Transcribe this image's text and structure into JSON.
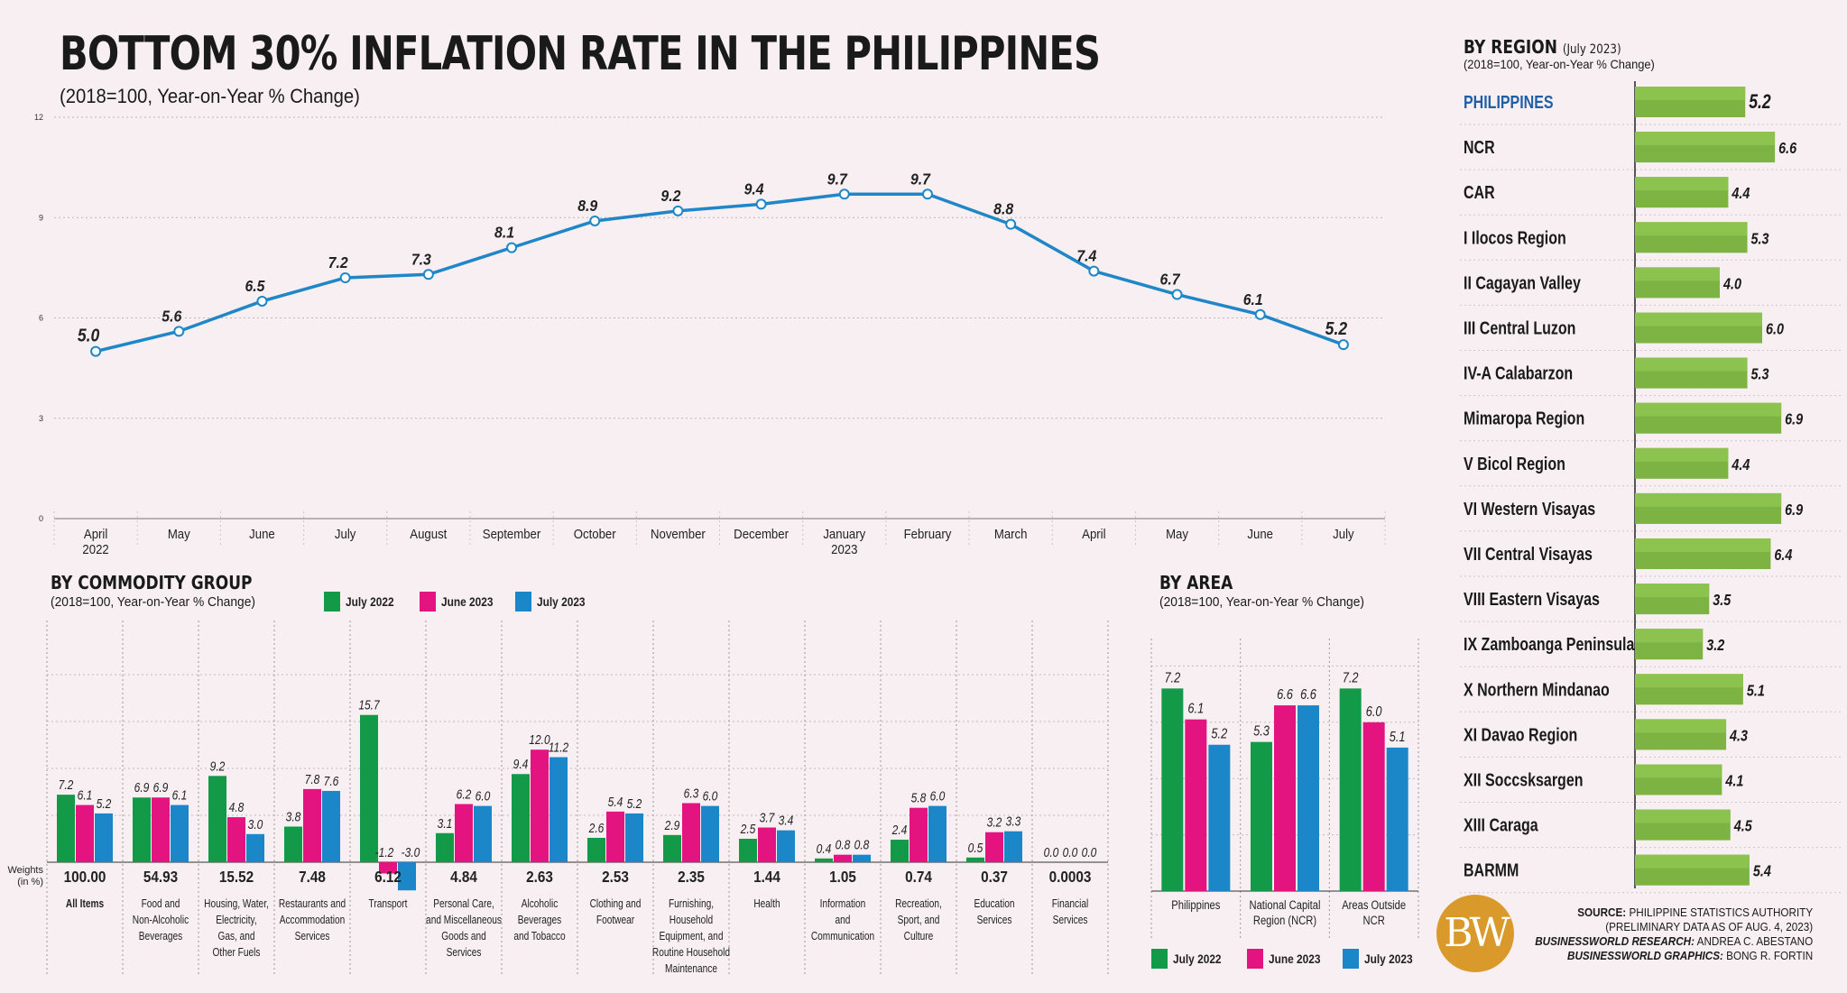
{
  "title": "BOTTOM 30% INFLATION RATE IN THE PHILIPPINES",
  "subtitle": "(2018=100, Year-on-Year % Change)",
  "colors": {
    "line": "#1f86c8",
    "green": "#139a48",
    "magenta": "#e3137f",
    "blue": "#1b87c9",
    "region_bar": "#7cb342",
    "region_bar_light": "#8cc34f",
    "highlight": "#1f5fa8"
  },
  "line_chart": {
    "type": "line",
    "title": "",
    "yticks": [
      0,
      3,
      6,
      9,
      12
    ],
    "ylim": [
      0,
      12
    ],
    "categories": [
      [
        "April",
        "2022"
      ],
      [
        "May"
      ],
      [
        "June"
      ],
      [
        "July"
      ],
      [
        "August"
      ],
      [
        "September"
      ],
      [
        "October"
      ],
      [
        "November"
      ],
      [
        "December"
      ],
      [
        "January",
        "2023"
      ],
      [
        "February"
      ],
      [
        "March"
      ],
      [
        "April"
      ],
      [
        "May"
      ],
      [
        "June"
      ],
      [
        "July"
      ]
    ],
    "labels": [
      "5.0",
      "5.6",
      "6.5",
      "7.2",
      "7.3",
      "8.1",
      "8.9",
      "9.2",
      "9.4",
      "9.7",
      "9.7",
      "8.8",
      "7.4",
      "6.7",
      "6.1",
      "5.2"
    ],
    "values": [
      5.0,
      5.6,
      6.5,
      7.2,
      7.3,
      8.1,
      8.9,
      9.2,
      9.4,
      9.7,
      9.7,
      8.8,
      7.4,
      6.7,
      6.1,
      5.2
    ]
  },
  "chart_data": [
    {
      "type": "line",
      "categories": [
        "April 2022",
        "May",
        "June",
        "July",
        "August",
        "September",
        "October",
        "November",
        "December",
        "January 2023",
        "February",
        "March",
        "April",
        "May",
        "June",
        "July"
      ],
      "values": [
        5.0,
        5.6,
        6.5,
        7.2,
        7.3,
        8.1,
        8.9,
        9.2,
        9.4,
        9.7,
        9.7,
        8.8,
        7.4,
        6.7,
        6.1,
        5.2
      ],
      "ylim": [
        0,
        12
      ],
      "title": "BOTTOM 30% INFLATION RATE IN THE PHILIPPINES",
      "subtitle": "(2018=100, Year-on-Year % Change)"
    },
    {
      "type": "bar",
      "title": "BY COMMODITY GROUP",
      "subtitle": "(2018=100, Year-on-Year % Change)",
      "categories": [
        "All Items",
        "Food and Non-Alcoholic Beverages",
        "Housing, Water, Electricity, Gas, and Other Fuels",
        "Restaurants and Accommodation Services",
        "Transport",
        "Personal Care, and Miscellaneous Goods and Services",
        "Alcoholic Beverages and Tobacco",
        "Clothing and Footwear",
        "Furnishing, Household Equipment, and Routine Household Maintenance",
        "Health",
        "Information and Communication",
        "Recreation, Sport, and Culture",
        "Education Services",
        "Financial Services"
      ],
      "weights": [
        "100.00",
        "54.93",
        "15.52",
        "7.48",
        "6.12",
        "4.84",
        "2.63",
        "2.53",
        "2.35",
        "1.44",
        "1.05",
        "0.74",
        "0.37",
        "0.0003"
      ],
      "series": [
        {
          "name": "July 2022",
          "values": [
            7.2,
            6.9,
            9.2,
            3.8,
            15.7,
            3.1,
            9.4,
            2.6,
            2.9,
            2.5,
            0.4,
            2.4,
            0.5,
            0.0
          ]
        },
        {
          "name": "June 2023",
          "values": [
            6.1,
            6.9,
            4.8,
            7.8,
            -1.2,
            6.2,
            12.0,
            5.4,
            6.3,
            3.7,
            0.8,
            5.8,
            3.2,
            0.0
          ]
        },
        {
          "name": "July 2023",
          "values": [
            5.2,
            6.1,
            3.0,
            7.6,
            -3.0,
            6.0,
            11.2,
            5.2,
            6.0,
            3.4,
            0.8,
            6.0,
            3.3,
            0.0
          ]
        }
      ]
    },
    {
      "type": "bar",
      "title": "BY AREA",
      "subtitle": "(2018=100, Year-on-Year % Change)",
      "categories": [
        "Philippines",
        "National Capital Region (NCR)",
        "Areas Outside NCR"
      ],
      "series": [
        {
          "name": "July 2022",
          "values": [
            7.2,
            5.3,
            7.2
          ]
        },
        {
          "name": "June 2023",
          "values": [
            6.1,
            6.6,
            6.0
          ]
        },
        {
          "name": "July 2023",
          "values": [
            5.2,
            6.6,
            5.1
          ]
        }
      ]
    },
    {
      "type": "bar",
      "title": "BY REGION",
      "subtitle": "(2018=100, Year-on-Year % Change)",
      "categories": [
        "PHILIPPINES",
        "NCR",
        "CAR",
        "I Ilocos Region",
        "II Cagayan Valley",
        "III Central Luzon",
        "IV-A Calabarzon",
        "Mimaropa Region",
        "V Bicol Region",
        "VI Western Visayas",
        "VII Central Visayas",
        "VIII Eastern Visayas",
        "IX Zamboanga Peninsula",
        "X Northern Mindanao",
        "XI Davao Region",
        "XII Soccsksargen",
        "XIII Caraga",
        "BARMM"
      ],
      "values": [
        5.2,
        6.6,
        4.4,
        5.3,
        4.0,
        6.0,
        5.3,
        6.9,
        4.4,
        6.9,
        6.4,
        3.5,
        3.2,
        5.1,
        4.3,
        4.1,
        4.5,
        5.4
      ]
    }
  ],
  "commodity": {
    "title": "BY COMMODITY GROUP",
    "subtitle": "(2018=100, Year-on-Year % Change)",
    "legend": [
      "July 2022",
      "June 2023",
      "July 2023"
    ],
    "weights_label": [
      "Weights",
      "(in %)"
    ],
    "groups": [
      {
        "name": [
          "All Items"
        ],
        "weight": "100.00",
        "labels": [
          "7.2",
          "6.1",
          "5.2"
        ],
        "values": [
          7.2,
          6.1,
          5.2
        ]
      },
      {
        "name": [
          "Food and",
          "Non-Alcoholic",
          "Beverages"
        ],
        "weight": "54.93",
        "labels": [
          "6.9",
          "6.9",
          "6.1"
        ],
        "values": [
          6.9,
          6.9,
          6.1
        ]
      },
      {
        "name": [
          "Housing, Water,",
          "Electricity,",
          "Gas, and",
          "Other Fuels"
        ],
        "weight": "15.52",
        "labels": [
          "9.2",
          "4.8",
          "3.0"
        ],
        "values": [
          9.2,
          4.8,
          3.0
        ]
      },
      {
        "name": [
          "Restaurants and",
          "Accommodation",
          "Services"
        ],
        "weight": "7.48",
        "labels": [
          "3.8",
          "7.8",
          "7.6"
        ],
        "values": [
          3.8,
          7.8,
          7.6
        ]
      },
      {
        "name": [
          "Transport"
        ],
        "weight": "6.12",
        "labels": [
          "15.7",
          "-1.2",
          "-3.0"
        ],
        "values": [
          15.7,
          -1.2,
          -3.0
        ]
      },
      {
        "name": [
          "Personal Care,",
          "and Miscellaneous",
          "Goods and",
          "Services"
        ],
        "weight": "4.84",
        "labels": [
          "3.1",
          "6.2",
          "6.0"
        ],
        "values": [
          3.1,
          6.2,
          6.0
        ]
      },
      {
        "name": [
          "Alcoholic",
          "Beverages",
          "and Tobacco"
        ],
        "weight": "2.63",
        "labels": [
          "9.4",
          "12.0",
          "11.2"
        ],
        "values": [
          9.4,
          12.0,
          11.2
        ]
      },
      {
        "name": [
          "Clothing and",
          "Footwear"
        ],
        "weight": "2.53",
        "labels": [
          "2.6",
          "5.4",
          "5.2"
        ],
        "values": [
          2.6,
          5.4,
          5.2
        ]
      },
      {
        "name": [
          "Furnishing,",
          "Household",
          "Equipment, and",
          "Routine Household",
          "Maintenance"
        ],
        "weight": "2.35",
        "labels": [
          "2.9",
          "6.3",
          "6.0"
        ],
        "values": [
          2.9,
          6.3,
          6.0
        ]
      },
      {
        "name": [
          "Health"
        ],
        "weight": "1.44",
        "labels": [
          "2.5",
          "3.7",
          "3.4"
        ],
        "values": [
          2.5,
          3.7,
          3.4
        ]
      },
      {
        "name": [
          "Information",
          "and",
          "Communication"
        ],
        "weight": "1.05",
        "labels": [
          "0.4",
          "0.8",
          "0.8"
        ],
        "values": [
          0.4,
          0.8,
          0.8
        ]
      },
      {
        "name": [
          "Recreation,",
          "Sport, and",
          "Culture"
        ],
        "weight": "0.74",
        "labels": [
          "2.4",
          "5.8",
          "6.0"
        ],
        "values": [
          2.4,
          5.8,
          6.0
        ]
      },
      {
        "name": [
          "Education",
          "Services"
        ],
        "weight": "0.37",
        "labels": [
          "0.5",
          "3.2",
          "3.3"
        ],
        "values": [
          0.5,
          3.2,
          3.3
        ]
      },
      {
        "name": [
          "Financial",
          "Services"
        ],
        "weight": "0.0003",
        "labels": [
          "0.0",
          "0.0",
          "0.0"
        ],
        "values": [
          0.0,
          0.0,
          0.0
        ]
      }
    ]
  },
  "area": {
    "title": "BY AREA",
    "subtitle": "(2018=100, Year-on-Year % Change)",
    "legend": [
      "July 2022",
      "June 2023",
      "July 2023"
    ],
    "groups": [
      {
        "name": [
          "Philippines"
        ],
        "labels": [
          "7.2",
          "6.1",
          "5.2"
        ],
        "values": [
          7.2,
          6.1,
          5.2
        ]
      },
      {
        "name": [
          "National Capital",
          "Region (NCR)"
        ],
        "labels": [
          "5.3",
          "6.6",
          "6.6"
        ],
        "values": [
          5.3,
          6.6,
          6.6
        ]
      },
      {
        "name": [
          "Areas Outside",
          "NCR"
        ],
        "labels": [
          "7.2",
          "6.0",
          "5.1"
        ],
        "values": [
          7.2,
          6.0,
          5.1
        ]
      }
    ]
  },
  "region": {
    "title": "BY REGION",
    "title_note": "(July 2023)",
    "subtitle": "(2018=100, Year-on-Year % Change)",
    "rows": [
      {
        "name": "PHILIPPINES",
        "label": "5.2",
        "value": 5.2,
        "highlight": true
      },
      {
        "name": "NCR",
        "label": "6.6",
        "value": 6.6
      },
      {
        "name": "CAR",
        "label": "4.4",
        "value": 4.4
      },
      {
        "name": "I Ilocos Region",
        "label": "5.3",
        "value": 5.3
      },
      {
        "name": "II Cagayan Valley",
        "label": "4.0",
        "value": 4.0
      },
      {
        "name": "III Central Luzon",
        "label": "6.0",
        "value": 6.0
      },
      {
        "name": "IV-A Calabarzon",
        "label": "5.3",
        "value": 5.3
      },
      {
        "name": "Mimaropa Region",
        "label": "6.9",
        "value": 6.9
      },
      {
        "name": "V Bicol Region",
        "label": "4.4",
        "value": 4.4
      },
      {
        "name": "VI Western Visayas",
        "label": "6.9",
        "value": 6.9
      },
      {
        "name": "VII Central Visayas",
        "label": "6.4",
        "value": 6.4
      },
      {
        "name": "VIII Eastern Visayas",
        "label": "3.5",
        "value": 3.5
      },
      {
        "name": "IX Zamboanga Peninsula",
        "label": "3.2",
        "value": 3.2
      },
      {
        "name": "X Northern Mindanao",
        "label": "5.1",
        "value": 5.1
      },
      {
        "name": "XI Davao Region",
        "label": "4.3",
        "value": 4.3
      },
      {
        "name": "XII Soccsksargen",
        "label": "4.1",
        "value": 4.1
      },
      {
        "name": "XIII Caraga",
        "label": "4.5",
        "value": 4.5
      },
      {
        "name": "BARMM",
        "label": "5.4",
        "value": 5.4
      }
    ]
  },
  "source": {
    "line1_label": "SOURCE:",
    "line1_text": "PHILIPPINE STATISTICS AUTHORITY",
    "line2": "(PRELIMINARY DATA AS OF AUG. 4, 2023)",
    "line3_label": "BUSINESSWORLD RESEARCH:",
    "line3_text": "ANDREA C. ABESTANO",
    "line4_label": "BUSINESSWORLD GRAPHICS:",
    "line4_text": "BONG R. FORTIN"
  },
  "logo_text": "BW"
}
